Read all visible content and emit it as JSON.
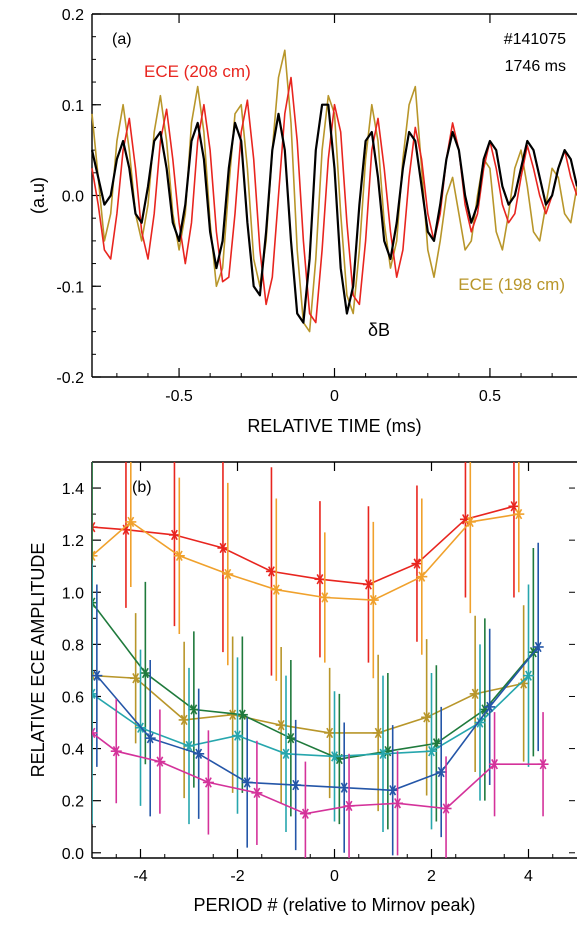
{
  "chart_data": [
    {
      "panel_label": "(a)",
      "type": "line",
      "title": "",
      "xlabel": "RELATIVE TIME (ms)",
      "ylabel": "(a.u)",
      "xlim": [
        -0.78,
        0.78
      ],
      "ylim": [
        -0.2,
        0.2
      ],
      "xticks": [
        -0.5,
        0,
        0.5
      ],
      "xtick_labels": [
        "-0.5",
        "0",
        "0.5"
      ],
      "yticks": [
        -0.2,
        -0.1,
        0.0,
        0.1,
        0.2
      ],
      "ytick_labels": [
        "-0.2",
        "-0.1",
        "0.0",
        "0.1",
        "0.2"
      ],
      "grid": false,
      "annotations": [
        "#141075",
        "1746 ms"
      ],
      "series": [
        {
          "name": "ECE (208 cm)",
          "color": "#e8251f",
          "x": [
            -0.78,
            -0.76,
            -0.74,
            -0.72,
            -0.7,
            -0.68,
            -0.66,
            -0.64,
            -0.62,
            -0.6,
            -0.58,
            -0.56,
            -0.54,
            -0.52,
            -0.5,
            -0.48,
            -0.46,
            -0.44,
            -0.42,
            -0.4,
            -0.38,
            -0.36,
            -0.34,
            -0.32,
            -0.3,
            -0.28,
            -0.26,
            -0.24,
            -0.22,
            -0.2,
            -0.18,
            -0.16,
            -0.14,
            -0.12,
            -0.1,
            -0.08,
            -0.06,
            -0.04,
            -0.02,
            0.0,
            0.02,
            0.04,
            0.06,
            0.08,
            0.1,
            0.12,
            0.14,
            0.16,
            0.18,
            0.2,
            0.22,
            0.24,
            0.26,
            0.28,
            0.3,
            0.32,
            0.34,
            0.36,
            0.38,
            0.4,
            0.42,
            0.44,
            0.46,
            0.48,
            0.5,
            0.52,
            0.54,
            0.56,
            0.58,
            0.6,
            0.62,
            0.64,
            0.66,
            0.68,
            0.7,
            0.72,
            0.74,
            0.76,
            0.78
          ],
          "y": [
            0.03,
            -0.01,
            -0.06,
            -0.07,
            -0.02,
            0.05,
            0.085,
            0.03,
            -0.04,
            -0.07,
            -0.02,
            0.06,
            0.095,
            0.04,
            -0.03,
            -0.075,
            -0.03,
            0.06,
            0.1,
            0.05,
            -0.04,
            -0.095,
            -0.09,
            -0.02,
            0.07,
            0.105,
            0.04,
            -0.06,
            -0.12,
            -0.09,
            0.0,
            0.09,
            0.13,
            0.06,
            -0.05,
            -0.13,
            -0.14,
            -0.06,
            0.04,
            0.1,
            0.07,
            -0.03,
            -0.11,
            -0.12,
            -0.05,
            0.05,
            0.085,
            0.03,
            -0.04,
            -0.09,
            -0.06,
            0.02,
            0.075,
            0.04,
            -0.02,
            -0.05,
            -0.02,
            0.04,
            0.08,
            0.05,
            -0.01,
            -0.04,
            -0.02,
            0.03,
            0.06,
            0.03,
            -0.01,
            -0.03,
            -0.02,
            0.02,
            0.055,
            0.03,
            0.0,
            -0.02,
            0.0,
            0.03,
            0.05,
            0.02,
            0.0
          ]
        },
        {
          "name": "ECE (198 cm)",
          "color": "#b8962a",
          "x": [
            -0.78,
            -0.76,
            -0.74,
            -0.72,
            -0.7,
            -0.68,
            -0.66,
            -0.64,
            -0.62,
            -0.6,
            -0.58,
            -0.56,
            -0.54,
            -0.52,
            -0.5,
            -0.48,
            -0.46,
            -0.44,
            -0.42,
            -0.4,
            -0.38,
            -0.36,
            -0.34,
            -0.32,
            -0.3,
            -0.28,
            -0.26,
            -0.24,
            -0.22,
            -0.2,
            -0.18,
            -0.16,
            -0.14,
            -0.12,
            -0.1,
            -0.08,
            -0.06,
            -0.04,
            -0.02,
            0.0,
            0.02,
            0.04,
            0.06,
            0.08,
            0.1,
            0.12,
            0.14,
            0.16,
            0.18,
            0.2,
            0.22,
            0.24,
            0.26,
            0.28,
            0.3,
            0.32,
            0.34,
            0.36,
            0.38,
            0.4,
            0.42,
            0.44,
            0.46,
            0.48,
            0.5,
            0.52,
            0.54,
            0.56,
            0.58,
            0.6,
            0.62,
            0.64,
            0.66,
            0.68,
            0.7,
            0.72,
            0.74,
            0.76,
            0.78
          ],
          "y": [
            0.09,
            0.02,
            -0.05,
            -0.02,
            0.06,
            0.1,
            0.05,
            -0.02,
            -0.05,
            -0.01,
            0.07,
            0.11,
            0.06,
            -0.02,
            -0.06,
            -0.02,
            0.08,
            0.12,
            0.07,
            -0.03,
            -0.1,
            -0.08,
            0.01,
            0.09,
            0.1,
            0.03,
            -0.07,
            -0.1,
            -0.05,
            0.05,
            0.13,
            0.16,
            0.08,
            -0.06,
            -0.14,
            -0.15,
            -0.07,
            0.05,
            0.11,
            0.09,
            -0.02,
            -0.11,
            -0.13,
            -0.06,
            0.04,
            0.1,
            0.06,
            -0.03,
            -0.08,
            -0.05,
            0.04,
            0.1,
            0.12,
            0.03,
            -0.06,
            -0.09,
            -0.05,
            0.0,
            0.02,
            -0.02,
            -0.06,
            -0.05,
            0.0,
            0.04,
            0.03,
            -0.04,
            -0.06,
            -0.02,
            0.03,
            0.05,
            0.01,
            -0.04,
            -0.05,
            -0.01,
            0.03,
            0.02,
            -0.02,
            -0.03,
            0.01
          ]
        },
        {
          "name": "δB",
          "color": "#000000",
          "x": [
            -0.78,
            -0.76,
            -0.74,
            -0.72,
            -0.7,
            -0.68,
            -0.66,
            -0.64,
            -0.62,
            -0.6,
            -0.58,
            -0.56,
            -0.54,
            -0.52,
            -0.5,
            -0.48,
            -0.46,
            -0.44,
            -0.42,
            -0.4,
            -0.38,
            -0.36,
            -0.34,
            -0.32,
            -0.3,
            -0.28,
            -0.26,
            -0.24,
            -0.22,
            -0.2,
            -0.18,
            -0.16,
            -0.14,
            -0.12,
            -0.1,
            -0.08,
            -0.06,
            -0.04,
            -0.02,
            0.0,
            0.02,
            0.04,
            0.06,
            0.08,
            0.1,
            0.12,
            0.14,
            0.16,
            0.18,
            0.2,
            0.22,
            0.24,
            0.26,
            0.28,
            0.3,
            0.32,
            0.34,
            0.36,
            0.38,
            0.4,
            0.42,
            0.44,
            0.46,
            0.48,
            0.5,
            0.52,
            0.54,
            0.56,
            0.58,
            0.6,
            0.62,
            0.64,
            0.66,
            0.68,
            0.7,
            0.72,
            0.74,
            0.76,
            0.78
          ],
          "y": [
            0.05,
            0.02,
            -0.01,
            0.0,
            0.04,
            0.06,
            0.03,
            -0.02,
            -0.03,
            0.01,
            0.06,
            0.07,
            0.03,
            -0.03,
            -0.05,
            -0.01,
            0.06,
            0.08,
            0.04,
            -0.04,
            -0.08,
            -0.05,
            0.03,
            0.08,
            0.06,
            -0.03,
            -0.1,
            -0.11,
            -0.04,
            0.05,
            0.09,
            0.05,
            -0.05,
            -0.13,
            -0.14,
            -0.07,
            0.05,
            0.1,
            0.1,
            0.03,
            -0.08,
            -0.13,
            -0.1,
            -0.01,
            0.06,
            0.07,
            0.02,
            -0.05,
            -0.07,
            -0.03,
            0.03,
            0.07,
            0.06,
            0.01,
            -0.04,
            -0.05,
            -0.01,
            0.04,
            0.07,
            0.05,
            0.0,
            -0.03,
            -0.01,
            0.04,
            0.06,
            0.05,
            0.01,
            -0.01,
            0.0,
            0.03,
            0.06,
            0.05,
            0.02,
            -0.01,
            0.0,
            0.03,
            0.05,
            0.04,
            0.01
          ]
        }
      ]
    },
    {
      "panel_label": "(b)",
      "type": "line",
      "title": "",
      "xlabel": "PERIOD # (relative to Mirnov peak)",
      "ylabel": "RELATIVE ECE AMPLITUDE",
      "xlim": [
        -5,
        5
      ],
      "ylim": [
        -0.02,
        1.5
      ],
      "xticks": [
        -4,
        -2,
        0,
        2,
        4
      ],
      "xtick_labels": [
        "-4",
        "-2",
        "0",
        "2",
        "4"
      ],
      "yticks": [
        0.0,
        0.2,
        0.4,
        0.6,
        0.8,
        1.0,
        1.2,
        1.4
      ],
      "ytick_labels": [
        "0.0",
        "0.2",
        "0.4",
        "0.6",
        "0.8",
        "1.0",
        "1.2",
        "1.4"
      ],
      "grid": false,
      "markers": "asterisk with vertical error bars",
      "series": [
        {
          "color": "#e8251f",
          "x": [
            -5.0,
            -4.3,
            -3.3,
            -2.3,
            -1.3,
            -0.3,
            0.7,
            1.7,
            2.7,
            3.7
          ],
          "y": [
            1.25,
            1.24,
            1.22,
            1.17,
            1.08,
            1.05,
            1.03,
            1.11,
            1.28,
            1.33
          ],
          "err": [
            0.0,
            0.3,
            0.35,
            0.4,
            0.4,
            0.3,
            0.3,
            0.3,
            0.3,
            0.35
          ]
        },
        {
          "color": "#f0a12c",
          "x": [
            -5.0,
            -4.2,
            -3.2,
            -2.2,
            -1.2,
            -0.2,
            0.8,
            1.8,
            2.8,
            3.8
          ],
          "y": [
            1.14,
            1.27,
            1.14,
            1.07,
            1.01,
            0.98,
            0.97,
            1.06,
            1.27,
            1.3
          ],
          "err": [
            0.0,
            0.25,
            0.3,
            0.35,
            0.35,
            0.25,
            0.3,
            0.3,
            0.35,
            0.3
          ]
        },
        {
          "color": "#b8962a",
          "x": [
            -5.0,
            -4.1,
            -3.1,
            -2.1,
            -1.1,
            -0.1,
            0.9,
            1.9,
            2.9,
            3.9
          ],
          "y": [
            0.68,
            0.67,
            0.51,
            0.53,
            0.49,
            0.46,
            0.46,
            0.52,
            0.61,
            0.65
          ],
          "err": [
            0.0,
            0.25,
            0.3,
            0.3,
            0.3,
            0.25,
            0.3,
            0.3,
            0.3,
            0.3
          ]
        },
        {
          "color": "#1f7a3c",
          "x": [
            -5.0,
            -3.9,
            -2.9,
            -1.9,
            -0.9,
            0.1,
            1.1,
            2.1,
            3.1,
            4.1
          ],
          "y": [
            0.96,
            0.69,
            0.55,
            0.53,
            0.44,
            0.36,
            0.39,
            0.42,
            0.55,
            0.77
          ],
          "err": [
            0.55,
            0.35,
            0.3,
            0.3,
            0.3,
            0.25,
            0.3,
            0.3,
            0.35,
            0.4
          ]
        },
        {
          "color": "#26a6ad",
          "x": [
            -5.0,
            -4.0,
            -3.0,
            -2.0,
            -1.0,
            0.0,
            1.0,
            2.0,
            3.0,
            4.0
          ],
          "y": [
            0.61,
            0.48,
            0.41,
            0.45,
            0.38,
            0.37,
            0.38,
            0.39,
            0.5,
            0.68
          ],
          "err": [
            0.5,
            0.3,
            0.3,
            0.3,
            0.3,
            0.25,
            0.3,
            0.3,
            0.3,
            0.35
          ]
        },
        {
          "color": "#2456a8",
          "x": [
            -4.9,
            -3.8,
            -2.8,
            -1.8,
            -0.8,
            0.2,
            1.2,
            2.2,
            3.2,
            4.2
          ],
          "y": [
            0.68,
            0.44,
            0.38,
            0.27,
            0.26,
            0.25,
            0.24,
            0.31,
            0.56,
            0.79
          ],
          "err": [
            0.35,
            0.3,
            0.25,
            0.25,
            0.25,
            0.25,
            0.25,
            0.25,
            0.3,
            0.4
          ]
        },
        {
          "color": "#d4329a",
          "x": [
            -5.0,
            -4.5,
            -3.6,
            -2.6,
            -1.6,
            -0.6,
            0.3,
            1.3,
            2.3,
            3.3,
            4.3
          ],
          "y": [
            0.46,
            0.39,
            0.35,
            0.27,
            0.23,
            0.15,
            0.18,
            0.19,
            0.17,
            0.34,
            0.34
          ],
          "err": [
            0.0,
            0.2,
            0.2,
            0.2,
            0.2,
            0.2,
            0.2,
            0.2,
            0.2,
            0.2,
            0.2
          ]
        }
      ]
    }
  ]
}
